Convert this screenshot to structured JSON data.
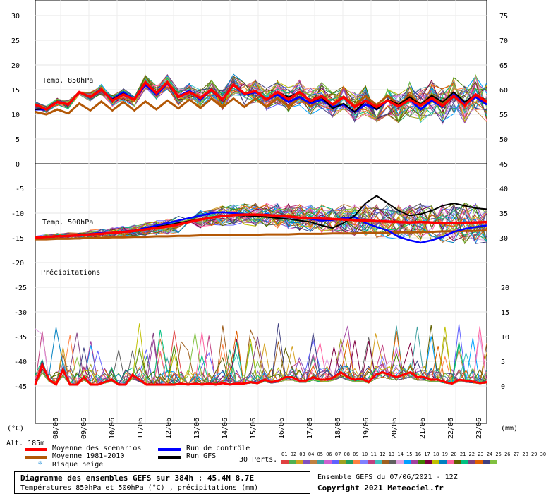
{
  "chart_data": {
    "type": "line",
    "dates": [
      "08/06",
      "09/06",
      "10/06",
      "11/06",
      "12/06",
      "13/06",
      "14/06",
      "15/06",
      "16/06",
      "17/06",
      "18/06",
      "19/06",
      "20/06",
      "21/06",
      "22/06",
      "23/06"
    ],
    "panels": [
      {
        "label": "Temp. 850hPa",
        "left_ticks": [
          "30",
          "25",
          "20",
          "15",
          "10",
          "5",
          "0"
        ],
        "right_ticks": [
          "75",
          "70",
          "65",
          "60",
          "55",
          "50",
          "45"
        ],
        "mean": [
          12,
          11,
          12.5,
          12,
          14.5,
          13.5,
          15,
          12.8,
          14,
          13,
          16.5,
          14.3,
          16.5,
          13.5,
          14.5,
          13.3,
          15,
          13,
          16,
          14.2,
          14.7,
          13,
          14.5,
          13,
          14.5,
          12.7,
          13.7,
          12,
          13.5,
          11.5,
          12.8,
          11.5,
          12.8,
          11.6,
          13,
          11.8,
          13.3,
          11.7,
          13.7,
          11.8,
          14,
          12.5
        ],
        "climo": [
          10.5,
          10,
          11,
          10.2,
          12.2,
          10.8,
          12.6,
          10.8,
          12.5,
          10.8,
          12.6,
          11,
          12.8,
          11.2,
          13,
          11.3,
          13.2,
          11.4,
          13.2,
          11.5,
          13.2,
          11.5,
          13.3,
          11.6,
          13.4,
          11.6,
          13.5,
          11.7,
          13.6,
          11.8,
          13.7,
          11.9,
          13.8,
          11.9,
          13.9,
          12,
          13.9,
          12.1,
          14,
          12.1,
          14,
          12.2
        ],
        "control": [
          11,
          11,
          12.5,
          12,
          14.5,
          13.5,
          15,
          13,
          14.5,
          13,
          16,
          14,
          16.3,
          13.6,
          14.8,
          13,
          15,
          13,
          16,
          14,
          14.5,
          13,
          14,
          12.5,
          13.5,
          12.2,
          13,
          11.5,
          12,
          10.5,
          12,
          11,
          12.8,
          11.5,
          13,
          11,
          12.8,
          11.5,
          14,
          12,
          13.5,
          12
        ],
        "gfs": [
          11,
          11.2,
          12.6,
          12,
          14.5,
          13.6,
          15,
          13,
          14.2,
          13,
          16.5,
          14.5,
          16.5,
          13.5,
          14.5,
          13.2,
          15,
          13,
          16,
          14.2,
          14.8,
          13,
          14.5,
          13.5,
          14.5,
          12.5,
          13.5,
          11.2,
          12.2,
          10.5,
          12.8,
          11,
          13,
          12,
          13.5,
          12,
          13.8,
          12.5,
          14.5,
          12.5,
          14,
          12.8
        ]
      },
      {
        "label": "Temp. 500hPa",
        "left_ticks": [
          "-5",
          "-10",
          "-15",
          "-20"
        ],
        "right_ticks": [
          "40",
          "35",
          "30"
        ],
        "mean": [
          -15,
          -14.8,
          -14.7,
          -14.6,
          -14.5,
          -14.3,
          -14.2,
          -14,
          -13.8,
          -13.6,
          -13.3,
          -13,
          -12.7,
          -12.3,
          -11.8,
          -11.3,
          -10.9,
          -10.6,
          -10.4,
          -10.3,
          -10.3,
          -10.4,
          -10.5,
          -10.7,
          -10.9,
          -11,
          -11.1,
          -11.2,
          -11.3,
          -11.4,
          -11.5,
          -11.6,
          -11.7,
          -11.8,
          -11.9,
          -11.8,
          -11.9,
          -12,
          -12,
          -12,
          -11.9,
          -11.8
        ],
        "climo": [
          -15.3,
          -15.3,
          -15.2,
          -15.2,
          -15.1,
          -15,
          -15,
          -14.9,
          -14.9,
          -14.8,
          -14.8,
          -14.7,
          -14.7,
          -14.6,
          -14.6,
          -14.5,
          -14.5,
          -14.5,
          -14.4,
          -14.4,
          -14.4,
          -14.3,
          -14.3,
          -14.3,
          -14.2,
          -14.2,
          -14.2,
          -14.1,
          -14.1,
          -14.1,
          -14,
          -14,
          -14,
          -13.9,
          -13.9,
          -13.8,
          -13.8,
          -13.7,
          -13.7,
          -13.6,
          -13.6,
          -13.5
        ],
        "control": [
          -15,
          -14.8,
          -14.6,
          -14.7,
          -14.4,
          -14.2,
          -14,
          -14,
          -13.7,
          -13.5,
          -13,
          -12.5,
          -12,
          -11.5,
          -11,
          -10.5,
          -10,
          -9.8,
          -10,
          -10.2,
          -10.5,
          -10.2,
          -10.6,
          -10.8,
          -11,
          -11.2,
          -11.5,
          -11.4,
          -11,
          -10.8,
          -12,
          -12.8,
          -13.5,
          -14.8,
          -15.5,
          -16,
          -15.5,
          -14.8,
          -13.8,
          -13.2,
          -12.8,
          -12.5
        ],
        "gfs": [
          -15,
          -14.9,
          -14.7,
          -14.6,
          -14.5,
          -14.4,
          -14.2,
          -14,
          -13.8,
          -13.5,
          -13.2,
          -12.8,
          -12.4,
          -12,
          -11.6,
          -11.2,
          -10.9,
          -10.6,
          -10.5,
          -10.5,
          -10.6,
          -10.8,
          -11,
          -11.2,
          -11.5,
          -11.8,
          -12.5,
          -13,
          -12,
          -10.5,
          -8,
          -6.5,
          -8,
          -9.5,
          -10.5,
          -10.2,
          -9.5,
          -8.5,
          -8,
          -8.5,
          -9,
          -9.2
        ]
      },
      {
        "label": "Précipitations",
        "left_ticks": [
          "-25",
          "-30",
          "-35",
          "-40",
          "-45"
        ],
        "right_ticks": [
          "20",
          "15",
          "10",
          "5",
          "0"
        ],
        "mean": [
          0,
          4,
          1,
          0,
          3,
          0,
          0,
          1.5,
          0,
          0,
          0.5,
          1,
          0,
          0,
          2,
          1,
          0,
          0,
          0,
          0,
          0,
          0.2,
          0,
          0.2,
          0,
          0.2,
          0,
          0.3,
          0,
          0.2,
          0.2,
          0.5,
          0.3,
          1,
          0.5,
          0.8,
          1.5,
          1.5,
          0.8,
          0.8,
          1.5,
          1,
          1,
          1.5,
          2.5,
          1.5,
          1,
          1.2,
          0.5,
          2,
          2.5,
          2,
          1.5,
          2,
          2.5,
          1.5,
          1.5,
          1,
          1,
          0.5,
          0.2,
          1,
          0.8,
          0.6,
          0.3,
          0.5
        ]
      }
    ],
    "left_axis_unit": "(°C)",
    "right_axis_unit": "(mm)",
    "altitude": "Alt. 185m"
  },
  "colors": {
    "mean": "#ff0000",
    "climo": "#b35806",
    "control": "#0000ff",
    "gfs": "#000000",
    "snow": "#4aa3df",
    "members": [
      "#e04040",
      "#50b050",
      "#d4a020",
      "#8050c0",
      "#c08040",
      "#40a0a0",
      "#d060d0",
      "#6060ff",
      "#a0a020",
      "#20a060",
      "#ff8040",
      "#8080ff",
      "#c04080",
      "#40c0c0",
      "#a06020",
      "#606060",
      "#e0a0e0",
      "#00a0ff",
      "#a040a0",
      "#408000",
      "#800040",
      "#c0c000",
      "#0080c0",
      "#ff60a0",
      "#606000",
      "#00c080",
      "#804080",
      "#e06000",
      "#404080",
      "#80c040"
    ]
  },
  "legend": {
    "mean_label": "Moyenne des scénarios",
    "climo_label": "Moyenne 1981-2010",
    "snow_label": "Risque neige",
    "control_label": "Run de contrôle",
    "gfs_label": "Run GFS",
    "perts_label": "30 Perts.",
    "perts_numbers": "01 02 03 04 05 06 07 08 09 10 11 12 13 14 15 16 17 18 19 20 21 22 23 24 25 26 27 28 29 30"
  },
  "footer": {
    "title": "Diagramme des ensembles GEFS sur 384h : 45.4N 8.7E",
    "subtitle": "Températures 850hPa et 500hPa (°C) , précipitations (mm)",
    "run": "Ensemble GEFS du 07/06/2021 - 12Z",
    "copyright": "Copyright 2021 Meteociel.fr"
  }
}
